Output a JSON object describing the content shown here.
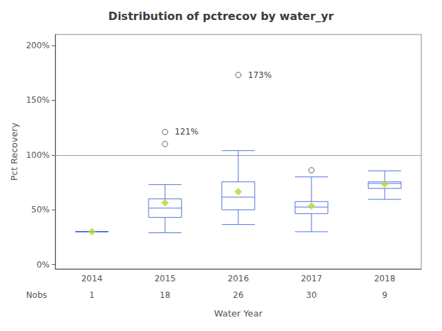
{
  "chart_data": {
    "type": "box",
    "title": "Distribution of pctrecov by water_yr",
    "xlabel": "Water Year",
    "ylabel": "Pct Recovery",
    "categories": [
      "2014",
      "2015",
      "2016",
      "2017",
      "2018"
    ],
    "boxes": [
      {
        "q1": 0.3,
        "median": 0.3,
        "q3": 0.3,
        "whislo": 0.3,
        "whishi": 0.3,
        "mean": 0.3,
        "fliers": []
      },
      {
        "q1": 0.43,
        "median": 0.515,
        "q3": 0.6,
        "whislo": 0.29,
        "whishi": 0.73,
        "mean": 0.565,
        "fliers": [
          1.1,
          1.21
        ]
      },
      {
        "q1": 0.5,
        "median": 0.615,
        "q3": 0.755,
        "whislo": 0.365,
        "whishi": 1.04,
        "mean": 0.665,
        "fliers": [
          1.73
        ]
      },
      {
        "q1": 0.465,
        "median": 0.525,
        "q3": 0.575,
        "whislo": 0.3,
        "whishi": 0.8,
        "mean": 0.535,
        "fliers": [
          0.86
        ]
      },
      {
        "q1": 0.695,
        "median": 0.74,
        "q3": 0.755,
        "whislo": 0.595,
        "whishi": 0.855,
        "mean": 0.735,
        "fliers": []
      }
    ],
    "annotations": [
      {
        "category": "2015",
        "y": 1.21,
        "text": "121%"
      },
      {
        "category": "2016",
        "y": 1.73,
        "text": "173%"
      }
    ],
    "hline": 1.0,
    "nobs_label": "Nobs",
    "nobs": [
      1,
      18,
      26,
      30,
      9
    ],
    "ylim": [
      -0.04,
      2.1
    ],
    "yticks": [
      {
        "value": 0.0,
        "label": "0%"
      },
      {
        "value": 0.5,
        "label": "50%"
      },
      {
        "value": 1.0,
        "label": "100%"
      },
      {
        "value": 1.5,
        "label": "150%"
      },
      {
        "value": 2.0,
        "label": "200%"
      }
    ],
    "grid": false
  }
}
